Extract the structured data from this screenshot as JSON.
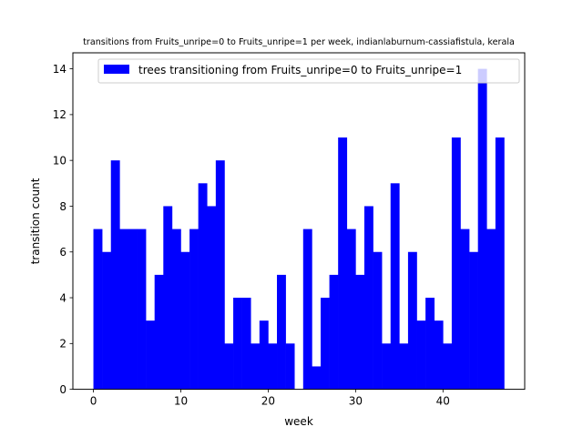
{
  "chart_data": {
    "type": "bar",
    "title": "transitions from Fruits_unripe=0 to Fruits_unripe=1 per week, indianlaburnum-cassiafistula, kerala",
    "xlabel": "week",
    "ylabel": "transition count",
    "xlim": [
      -2.35,
      49.35
    ],
    "ylim": [
      0,
      14.7
    ],
    "xticks": [
      0,
      10,
      20,
      30,
      40
    ],
    "yticks": [
      0,
      2,
      4,
      6,
      8,
      10,
      12,
      14
    ],
    "bar_width": 1,
    "grid": false,
    "legend_position": "top-right",
    "color": "#0000ff",
    "series": [
      {
        "name": "trees transitioning from Fruits_unripe=0 to Fruits_unripe=1",
        "x": [
          0,
          1,
          2,
          3,
          4,
          5,
          6,
          7,
          8,
          9,
          10,
          11,
          12,
          13,
          14,
          15,
          16,
          17,
          18,
          19,
          20,
          21,
          22,
          23,
          24,
          25,
          26,
          27,
          28,
          29,
          30,
          31,
          32,
          33,
          34,
          35,
          36,
          37,
          38,
          39,
          40,
          41,
          42,
          43,
          44,
          45,
          46
        ],
        "values": [
          7,
          6,
          10,
          7,
          7,
          7,
          3,
          5,
          8,
          7,
          6,
          7,
          9,
          8,
          10,
          2,
          4,
          4,
          2,
          3,
          2,
          5,
          2,
          0,
          7,
          1,
          4,
          5,
          11,
          7,
          5,
          8,
          6,
          2,
          9,
          2,
          6,
          3,
          4,
          3,
          2,
          11,
          7,
          6,
          14,
          7,
          11
        ]
      }
    ]
  }
}
